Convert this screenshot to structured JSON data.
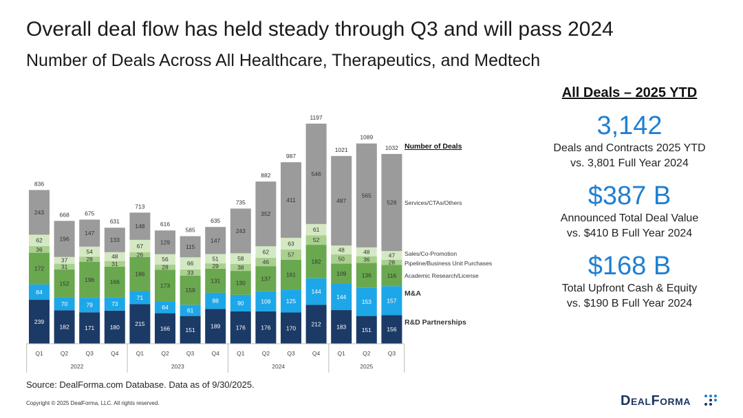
{
  "header": {
    "title": "Overall deal flow has held steady through Q3 and will pass 2024",
    "subtitle": "Number of Deals Across All Healthcare, Therapeutics, and Medtech"
  },
  "panel": {
    "heading": "All Deals – 2025 YTD",
    "stats": [
      {
        "value": "3,142",
        "line1": "Deals and Contracts 2025 YTD",
        "line2": "vs. 3,801 Full Year 2024"
      },
      {
        "value": "$387 B",
        "line1": "Announced Total Deal Value",
        "line2": "vs. $410 B Full Year 2024"
      },
      {
        "value": "$168 B",
        "line1": "Total Upfront Cash & Equity",
        "line2": "vs. $190 B Full Year 2024"
      }
    ]
  },
  "footer": {
    "source": "Source: DealForma.com Database. Data as of 9/30/2025.",
    "copyright": "Copyright © 2025 DealForma, LLC. All rights reserved.",
    "logo_text": "DealForma"
  },
  "colors": {
    "rd": "#1b3a66",
    "ma": "#1ea7e8",
    "academic": "#6aa84f",
    "pipeline": "#a9d08e",
    "sales": "#d4e9c3",
    "services": "#9b9b9b",
    "accent": "#1f7fd1"
  },
  "chart_data": {
    "type": "bar",
    "stacked": true,
    "legend_title": "Number of Deals",
    "categories": [
      "Q1",
      "Q2",
      "Q3",
      "Q4",
      "Q1",
      "Q2",
      "Q3",
      "Q4",
      "Q1",
      "Q2",
      "Q3",
      "Q4",
      "Q1",
      "Q2",
      "Q3"
    ],
    "years": [
      {
        "label": "2022",
        "start": 0,
        "end": 3
      },
      {
        "label": "2023",
        "start": 4,
        "end": 7
      },
      {
        "label": "2024",
        "start": 8,
        "end": 11
      },
      {
        "label": "2025",
        "start": 12,
        "end": 14
      }
    ],
    "totals": [
      836,
      668,
      675,
      631,
      713,
      616,
      585,
      635,
      735,
      882,
      987,
      1197,
      1021,
      1089,
      1032
    ],
    "series": [
      {
        "name": "R&D Partnerships",
        "color_key": "rd",
        "values": [
          239,
          182,
          171,
          180,
          215,
          166,
          151,
          189,
          176,
          176,
          170,
          212,
          183,
          151,
          156
        ]
      },
      {
        "name": "M&A",
        "color_key": "ma",
        "values": [
          84,
          70,
          79,
          73,
          71,
          64,
          61,
          88,
          90,
          109,
          125,
          144,
          144,
          153,
          157
        ]
      },
      {
        "name": "Academic Research/License",
        "color_key": "academic",
        "values": [
          172,
          152,
          196,
          166,
          186,
          173,
          159,
          131,
          130,
          137,
          161,
          182,
          109,
          136,
          116
        ]
      },
      {
        "name": "Pipeline/Business Unit Purchases",
        "color_key": "pipeline",
        "values": [
          36,
          31,
          28,
          31,
          26,
          28,
          33,
          29,
          38,
          46,
          57,
          52,
          50,
          36,
          28
        ]
      },
      {
        "name": "Sales/Co-Promotion",
        "color_key": "sales",
        "values": [
          62,
          37,
          54,
          48,
          67,
          56,
          66,
          51,
          58,
          62,
          63,
          61,
          48,
          48,
          47
        ]
      },
      {
        "name": "Services/CTAs/Others",
        "color_key": "services",
        "values": [
          243,
          196,
          147,
          133,
          148,
          129,
          115,
          147,
          243,
          352,
          411,
          546,
          487,
          565,
          528
        ]
      }
    ],
    "xlabel": "",
    "ylabel": "",
    "ylim": [
      0,
      1250
    ],
    "grid": false,
    "legend_placement": "right"
  }
}
